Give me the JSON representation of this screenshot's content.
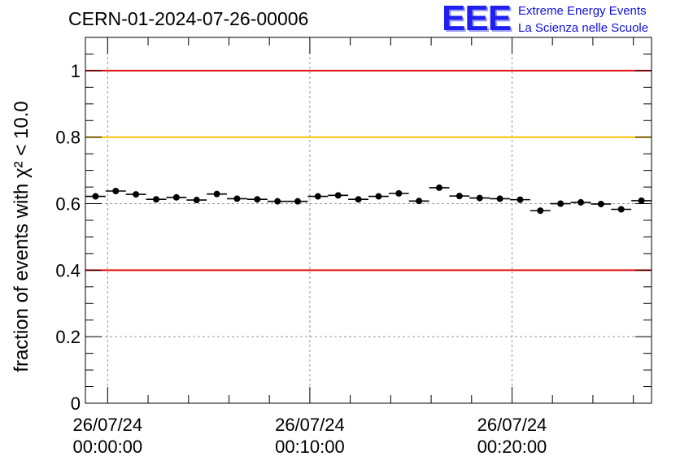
{
  "header": {
    "title": "CERN-01-2024-07-26-00006",
    "logo_mark": "EEE",
    "logo_line1": "Extreme Energy Events",
    "logo_line2": "La Scienza nelle Scuole",
    "logo_color": "#1f1ff0"
  },
  "chart_data": {
    "type": "scatter",
    "title": "CERN-01-2024-07-26-00006",
    "ylabel": "fraction of events with χ² < 10.0",
    "xlabel": "",
    "xlim_minutes": [
      -1.1,
      26.9
    ],
    "ylim": [
      0,
      1.1
    ],
    "yticks": [
      0,
      0.2,
      0.4,
      0.6,
      0.8,
      1
    ],
    "ytick_labels": [
      "0",
      "0.2",
      "0.4",
      "0.6",
      "0.8",
      "1"
    ],
    "xticks": [
      {
        "minute": 0,
        "date": "26/07/24",
        "time": "00:00:00"
      },
      {
        "minute": 10,
        "date": "26/07/24",
        "time": "00:10:00"
      },
      {
        "minute": 20,
        "date": "26/07/24",
        "time": "00:20:00"
      }
    ],
    "grid": true,
    "reference_lines": [
      {
        "y": 1.0,
        "color": "#e01010"
      },
      {
        "y": 0.8,
        "color": "#ffc000"
      },
      {
        "y": 0.4,
        "color": "#e01010"
      }
    ],
    "bin_width_minutes": 1,
    "series": [
      {
        "x_minutes": [
          -0.6,
          0.4,
          1.4,
          2.4,
          3.4,
          4.4,
          5.4,
          6.4,
          7.4,
          8.4,
          9.4,
          10.4,
          11.4,
          12.4,
          13.4,
          14.4,
          15.4,
          16.4,
          17.4,
          18.4,
          19.4,
          20.4,
          21.4,
          22.4,
          23.4,
          24.4,
          25.4,
          26.4
        ],
        "values": [
          0.622,
          0.638,
          0.628,
          0.613,
          0.619,
          0.611,
          0.629,
          0.615,
          0.613,
          0.607,
          0.607,
          0.622,
          0.625,
          0.613,
          0.622,
          0.631,
          0.608,
          0.648,
          0.623,
          0.617,
          0.615,
          0.612,
          0.579,
          0.6,
          0.604,
          0.599,
          0.583,
          0.609
        ],
        "errors": [
          0.008,
          0.008,
          0.008,
          0.008,
          0.008,
          0.008,
          0.008,
          0.008,
          0.008,
          0.008,
          0.008,
          0.008,
          0.008,
          0.008,
          0.008,
          0.008,
          0.008,
          0.008,
          0.008,
          0.008,
          0.008,
          0.008,
          0.008,
          0.008,
          0.008,
          0.008,
          0.008,
          0.008
        ]
      }
    ]
  }
}
